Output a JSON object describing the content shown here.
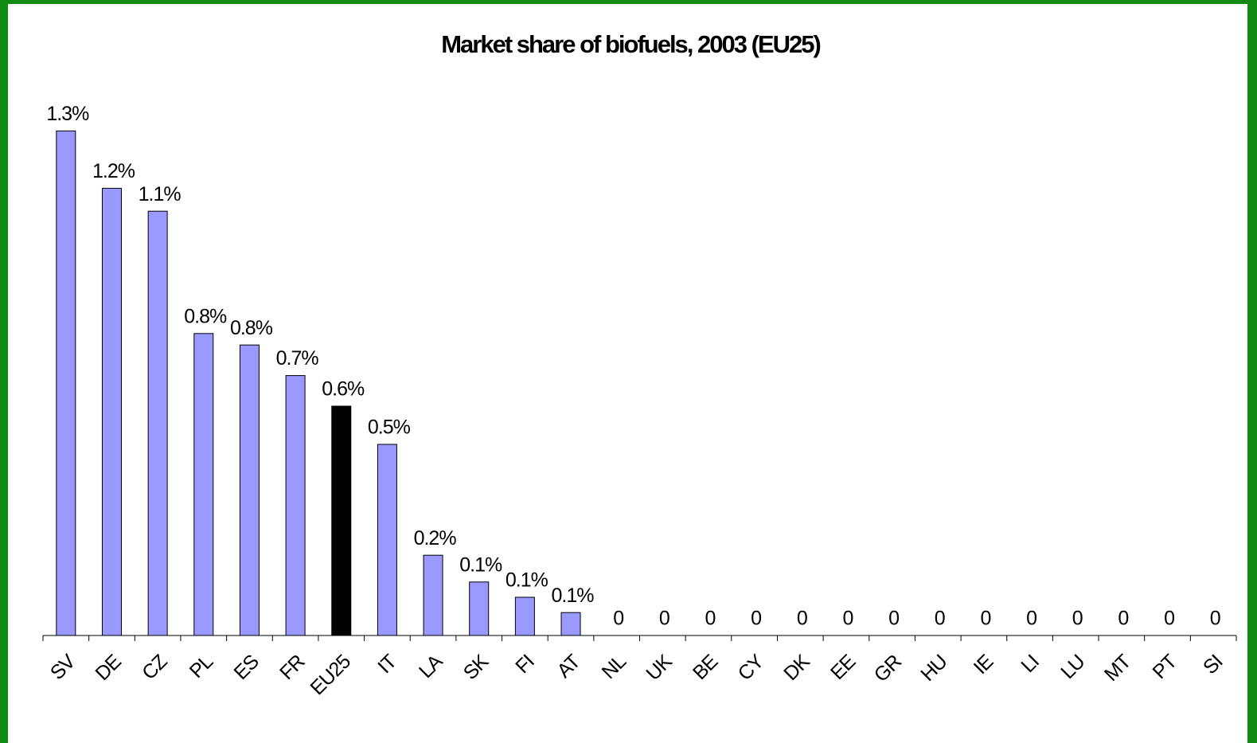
{
  "chart_data": {
    "type": "bar",
    "title": "Market share of biofuels, 2003 (EU25)",
    "categories": [
      "SV",
      "DE",
      "CZ",
      "PL",
      "ES",
      "FR",
      "EU25",
      "IT",
      "LA",
      "SK",
      "FI",
      "AT",
      "NL",
      "UK",
      "BE",
      "CY",
      "DK",
      "EE",
      "GR",
      "HU",
      "IE",
      "LI",
      "LU",
      "MT",
      "PT",
      "SI"
    ],
    "values": [
      1.32,
      1.17,
      1.11,
      0.79,
      0.76,
      0.68,
      0.6,
      0.5,
      0.21,
      0.14,
      0.1,
      0.06,
      0,
      0,
      0,
      0,
      0,
      0,
      0,
      0,
      0,
      0,
      0,
      0,
      0,
      0
    ],
    "value_labels": [
      "1.3%",
      "1.2%",
      "1.1%",
      "0.8%",
      "0.8%",
      "0.7%",
      "0.6%",
      "0.5%",
      "0.2%",
      "0.1%",
      "0.1%",
      "0.1%",
      "0",
      "0",
      "0",
      "0",
      "0",
      "0",
      "0",
      "0",
      "0",
      "0",
      "0",
      "0",
      "0",
      "0"
    ],
    "colors": [
      "#9999ff",
      "#9999ff",
      "#9999ff",
      "#9999ff",
      "#9999ff",
      "#9999ff",
      "#000000",
      "#9999ff",
      "#9999ff",
      "#9999ff",
      "#9999ff",
      "#9999ff",
      "#9999ff",
      "#9999ff",
      "#9999ff",
      "#9999ff",
      "#9999ff",
      "#9999ff",
      "#9999ff",
      "#9999ff",
      "#9999ff",
      "#9999ff",
      "#9999ff",
      "#9999ff",
      "#9999ff",
      "#9999ff"
    ],
    "ylim": [
      0,
      1.4
    ],
    "grid": false
  }
}
